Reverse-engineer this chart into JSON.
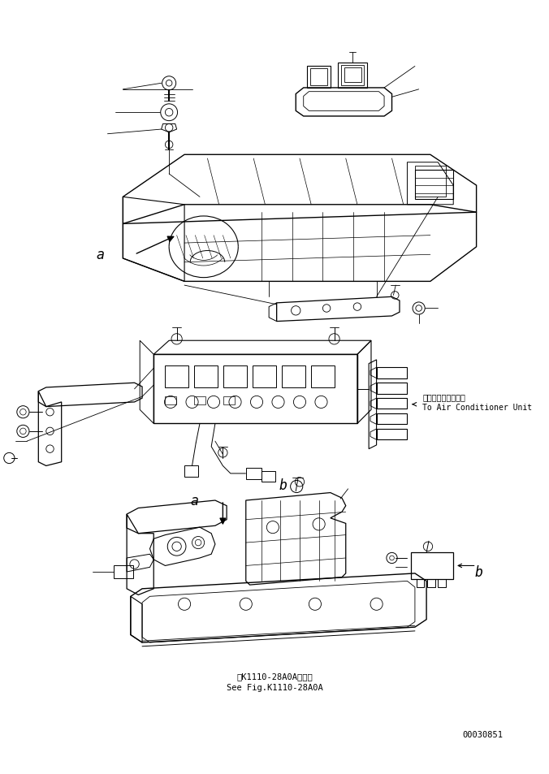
{
  "background_color": "#ffffff",
  "line_color": "#000000",
  "text_color": "#000000",
  "part_number": "00030851",
  "label_a1": "a",
  "label_a2": "a",
  "label_b1": "b",
  "label_b2": "b",
  "text_ac_jp": "エアコンユニットへ",
  "text_ac_en": "To Air Conditioner Unit",
  "text_ref_jp": "第K1110-28A0A図参照",
  "text_ref_en": "See Fig.K1110-28A0A",
  "fontsize_label": 10,
  "fontsize_small": 7,
  "fontsize_ref": 7.5
}
